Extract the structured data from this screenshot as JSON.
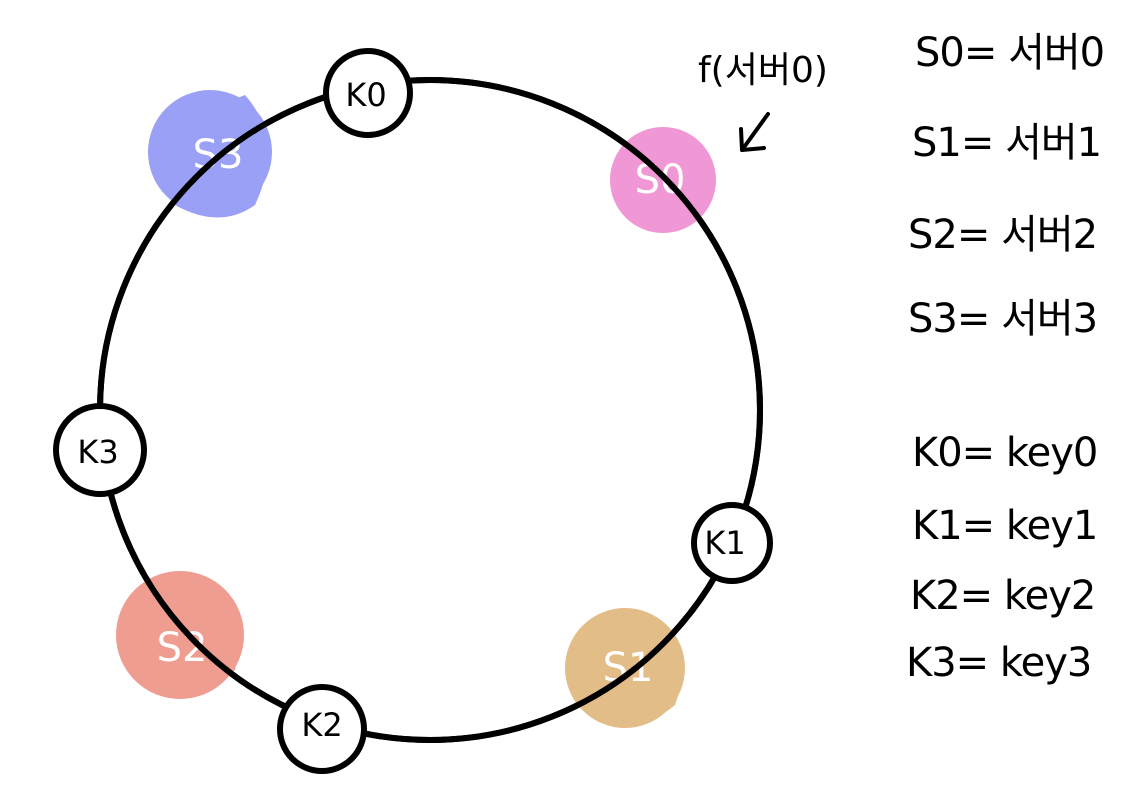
{
  "servers": [
    {
      "id": "S0",
      "label": "S0",
      "color": "#f097d6"
    },
    {
      "id": "S1",
      "label": "S1",
      "color": "#e3bd88"
    },
    {
      "id": "S2",
      "label": "S2",
      "color": "#ef9c91"
    },
    {
      "id": "S3",
      "label": "S3",
      "color": "#9aa0f6"
    }
  ],
  "keys": [
    {
      "id": "K0",
      "label": "K0"
    },
    {
      "id": "K1",
      "label": "K1"
    },
    {
      "id": "K2",
      "label": "K2"
    },
    {
      "id": "K3",
      "label": "K3"
    }
  ],
  "annotation": {
    "text": "f(서버0)",
    "arrow": "↙"
  },
  "server_legend": [
    "S0= 서버0",
    "S1= 서버1",
    "S2= 서버2",
    "S3= 서버3"
  ],
  "key_legend": [
    "K0= key0",
    "K1= key1",
    "K2= key2",
    "K3= key3"
  ]
}
